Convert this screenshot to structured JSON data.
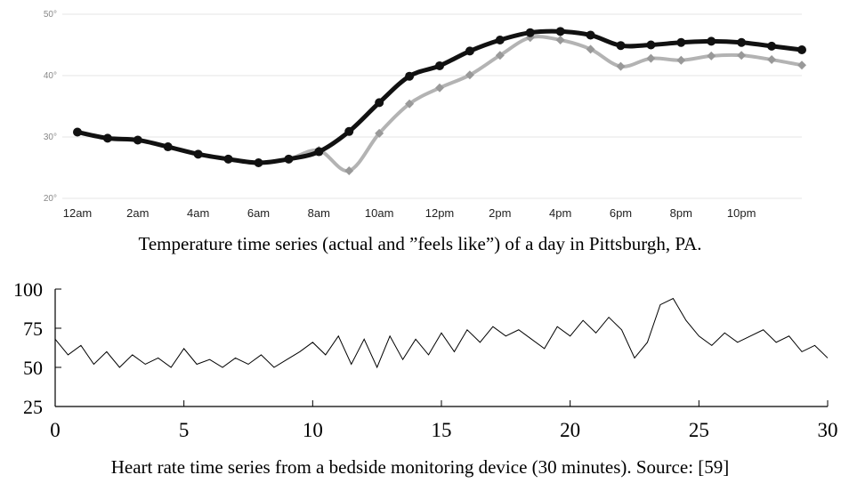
{
  "chart_data": [
    {
      "type": "line",
      "caption": "Temperature time series (actual and ”feels like”) of a day in Pittsburgh, PA.",
      "categories": [
        "12am",
        null,
        "2am",
        null,
        "4am",
        null,
        "6am",
        null,
        "8am",
        null,
        "10am",
        null,
        "12pm",
        null,
        "2pm",
        null,
        "4pm",
        null,
        "6pm",
        null,
        "8pm",
        null,
        "10pm",
        null,
        null
      ],
      "ylim": [
        20,
        50
      ],
      "yticks": [
        {
          "value": 20,
          "label": "20°"
        },
        {
          "value": 30,
          "label": "30°"
        },
        {
          "value": 40,
          "label": "40°"
        },
        {
          "value": 50,
          "label": "50°"
        }
      ],
      "grid": true,
      "series": [
        {
          "color": "#b3b3b3",
          "marker": "diamond",
          "values": [
            30.8,
            29.8,
            29.5,
            28.4,
            27.2,
            26.4,
            25.8,
            26.4,
            27.8,
            24.5,
            30.6,
            35.4,
            38.0,
            40.1,
            43.3,
            46.2,
            45.8,
            44.3,
            41.5,
            42.8,
            42.5,
            43.2,
            43.3,
            42.6,
            41.7
          ]
        },
        {
          "color": "#111111",
          "marker": "circle",
          "values": [
            30.8,
            29.8,
            29.5,
            28.4,
            27.2,
            26.4,
            25.8,
            26.4,
            27.6,
            30.9,
            35.6,
            39.9,
            41.6,
            44.0,
            45.8,
            47.0,
            47.2,
            46.6,
            44.9,
            45.0,
            45.4,
            45.6,
            45.4,
            44.8,
            44.2
          ]
        }
      ]
    },
    {
      "type": "line",
      "caption": "Heart rate time series from a bedside monitoring device (30 minutes). Source: [59]",
      "x": [
        0,
        0.5,
        1,
        1.5,
        2,
        2.5,
        3,
        3.5,
        4,
        4.5,
        5,
        5.5,
        6,
        6.5,
        7,
        7.5,
        8,
        8.5,
        9,
        9.5,
        10,
        10.5,
        11,
        11.5,
        12,
        12.5,
        13,
        13.5,
        14,
        14.5,
        15,
        15.5,
        16,
        16.5,
        17,
        17.5,
        18,
        18.5,
        19,
        19.5,
        20,
        20.5,
        21,
        21.5,
        22,
        22.5,
        23,
        23.5,
        24,
        24.5,
        25,
        25.5,
        26,
        26.5,
        27,
        27.5,
        28,
        28.5,
        29,
        29.5,
        30
      ],
      "xlim": [
        0,
        30
      ],
      "xticks": [
        0,
        5,
        10,
        15,
        20,
        25,
        30
      ],
      "ylim": [
        25,
        100
      ],
      "yticks": [
        25,
        50,
        75,
        100
      ],
      "series": [
        {
          "color": "#000000",
          "values": [
            68,
            58,
            64,
            52,
            60,
            50,
            58,
            52,
            56,
            50,
            62,
            52,
            55,
            50,
            56,
            52,
            58,
            50,
            55,
            60,
            66,
            58,
            70,
            52,
            68,
            50,
            70,
            55,
            68,
            58,
            72,
            60,
            74,
            66,
            76,
            70,
            74,
            68,
            62,
            76,
            70,
            80,
            72,
            82,
            74,
            56,
            66,
            90,
            94,
            80,
            70,
            64,
            72,
            66,
            70,
            74,
            66,
            70,
            60,
            64,
            56
          ]
        }
      ]
    }
  ]
}
